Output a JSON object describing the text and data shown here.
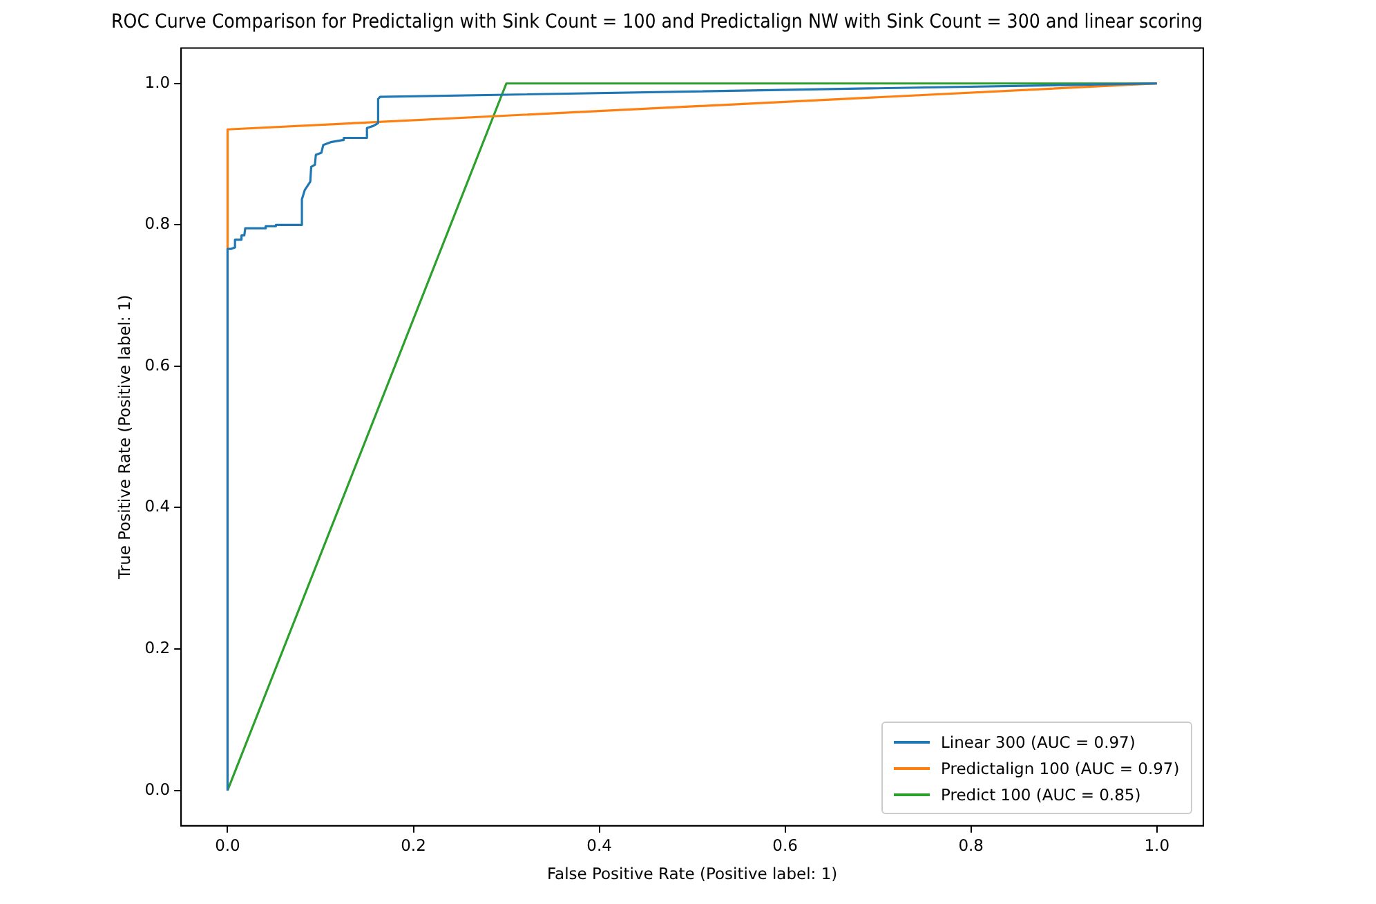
{
  "chart_data": {
    "type": "line",
    "title": "ROC Curve Comparison for Predictalign with Sink Count = 100 and Predictalign NW with Sink Count = 300 and linear scoring",
    "xlabel": "False Positive Rate (Positive label: 1)",
    "ylabel": "True Positive Rate (Positive label: 1)",
    "series": [
      {
        "name": "Linear 300 (AUC = 0.97)",
        "color": "#1f77b4",
        "x": [
          0,
          0,
          0.004,
          0.008,
          0.008,
          0.015,
          0.015,
          0.018,
          0.019,
          0.041,
          0.041,
          0.052,
          0.052,
          0.08,
          0.08,
          0.083,
          0.089,
          0.09,
          0.094,
          0.095,
          0.101,
          0.103,
          0.111,
          0.124,
          0.125,
          0.15,
          0.15,
          0.157,
          0.162,
          0.162,
          0.164,
          1
        ],
        "values": [
          0,
          0.766,
          0.766,
          0.768,
          0.779,
          0.779,
          0.785,
          0.785,
          0.795,
          0.795,
          0.798,
          0.798,
          0.8,
          0.8,
          0.836,
          0.849,
          0.861,
          0.882,
          0.885,
          0.899,
          0.902,
          0.913,
          0.917,
          0.92,
          0.923,
          0.923,
          0.937,
          0.94,
          0.944,
          0.978,
          0.981,
          1
        ]
      },
      {
        "name": "Predictalign 100 (AUC = 0.97)",
        "color": "#ff7f0e",
        "x": [
          0,
          0,
          1
        ],
        "values": [
          0,
          0.935,
          1
        ]
      },
      {
        "name": "Predict 100 (AUC = 0.85)",
        "color": "#2ca02c",
        "x": [
          0,
          0.3,
          1
        ],
        "values": [
          0,
          1,
          1
        ]
      }
    ],
    "xlim": [
      -0.05,
      1.05
    ],
    "ylim": [
      -0.05,
      1.05
    ],
    "xticks": [
      {
        "value": 0,
        "label": "0.0"
      },
      {
        "value": 0.2,
        "label": "0.2"
      },
      {
        "value": 0.4,
        "label": "0.4"
      },
      {
        "value": 0.6,
        "label": "0.6"
      },
      {
        "value": 0.8,
        "label": "0.8"
      },
      {
        "value": 1,
        "label": "1.0"
      }
    ],
    "yticks": [
      {
        "value": 0,
        "label": "0.0"
      },
      {
        "value": 0.2,
        "label": "0.2"
      },
      {
        "value": 0.4,
        "label": "0.4"
      },
      {
        "value": 0.6,
        "label": "0.6"
      },
      {
        "value": 0.8,
        "label": "0.8"
      },
      {
        "value": 1,
        "label": "1.0"
      }
    ],
    "grid": false,
    "legend": "bottom right",
    "marker": "none",
    "line_style": "solid"
  }
}
